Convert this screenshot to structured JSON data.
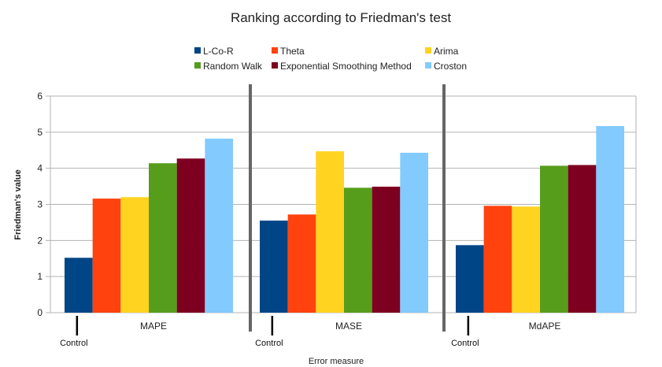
{
  "chart_data": {
    "type": "bar",
    "title": "Ranking according to Friedman's  test",
    "xlabel": "Error measure",
    "ylabel": "Friedman's value",
    "ylim": [
      0,
      6
    ],
    "yticks": [
      0,
      1,
      2,
      3,
      4,
      5,
      6
    ],
    "grid": true,
    "legend_position": "top",
    "categories": [
      "MAPE",
      "MASE",
      "MdAPE"
    ],
    "annotation": "Control",
    "control_series": "L-Co-R",
    "series": [
      {
        "name": "L-Co-R",
        "color": "#004586",
        "values": [
          1.52,
          2.55,
          1.87
        ]
      },
      {
        "name": "Theta",
        "color": "#ff420e",
        "values": [
          3.16,
          2.72,
          2.96
        ]
      },
      {
        "name": "Arima",
        "color": "#ffd320",
        "values": [
          3.2,
          4.47,
          2.94
        ]
      },
      {
        "name": "Random Walk",
        "color": "#579d1c",
        "values": [
          4.14,
          3.46,
          4.07
        ]
      },
      {
        "name": "Exponential Smoothing Method",
        "color": "#7e0021",
        "values": [
          4.27,
          3.49,
          4.09
        ]
      },
      {
        "name": "Croston",
        "color": "#83caff",
        "values": [
          4.82,
          4.43,
          5.17
        ]
      }
    ]
  }
}
